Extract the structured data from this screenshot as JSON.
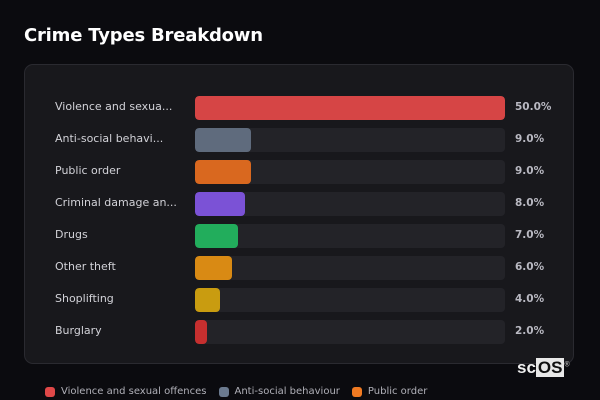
{
  "header": {
    "title": "Crime Types Breakdown"
  },
  "chart_data": {
    "type": "bar",
    "orientation": "horizontal",
    "title": "Crime Types Breakdown",
    "categories": [
      "Violence and sexual offences",
      "Anti-social behaviour",
      "Public order",
      "Criminal damage and arson",
      "Drugs",
      "Other theft",
      "Shoplifting",
      "Burglary"
    ],
    "display_labels": [
      "Violence and sexua...",
      "Anti-social behavi...",
      "Public order",
      "Criminal damage an...",
      "Drugs",
      "Other theft",
      "Shoplifting",
      "Burglary"
    ],
    "values": [
      50.0,
      9.0,
      9.0,
      8.0,
      7.0,
      6.0,
      4.0,
      2.0
    ],
    "value_labels": [
      "50.0%",
      "9.0%",
      "9.0%",
      "8.0%",
      "7.0%",
      "6.0%",
      "4.0%",
      "2.0%"
    ],
    "colors": [
      "#d64545",
      "#5f6b7d",
      "#d9681f",
      "#7b52d6",
      "#22ad5c",
      "#d98a14",
      "#c99c10",
      "#c62f2f"
    ],
    "max_value": 50.0,
    "legend": [
      {
        "label": "Violence and sexual offences",
        "color": "#e04848"
      },
      {
        "label": "Anti-social behaviour",
        "color": "#6b7a8f"
      },
      {
        "label": "Public order",
        "color": "#f07a22"
      }
    ],
    "legend_position": "bottom"
  },
  "watermark": {
    "prefix": "sc",
    "boxed": "OS",
    "mark": "®"
  }
}
